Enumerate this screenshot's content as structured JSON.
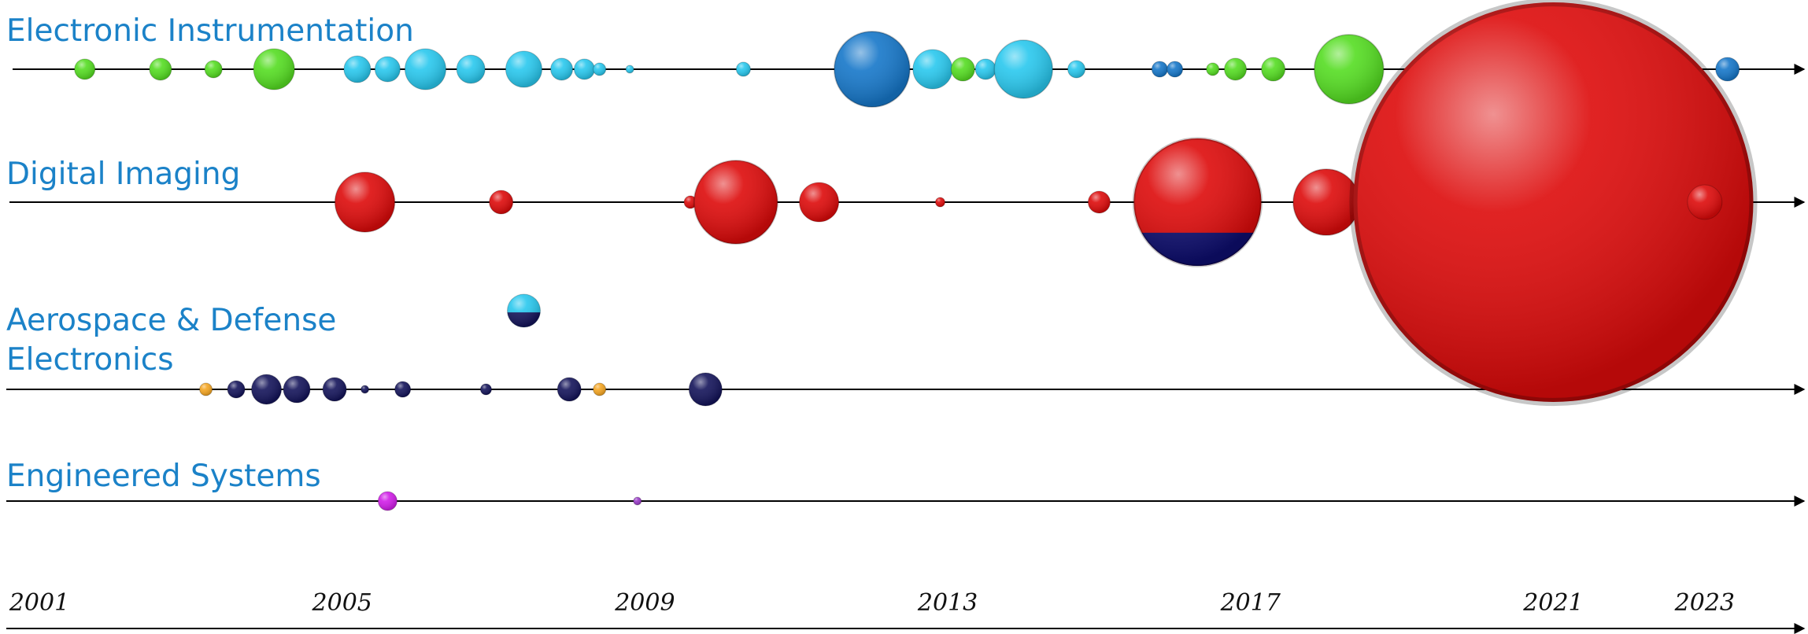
{
  "chart_data": {
    "type": "scatter",
    "x_axis": {
      "tick_labels": [
        "2001",
        "2005",
        "2009",
        "2013",
        "2017",
        "2021",
        "2023"
      ],
      "xlim": [
        2001,
        2024
      ]
    },
    "rows": [
      {
        "name": "Electronic Instrumentation",
        "bubbles": [
          {
            "x": 2001.6,
            "r": 13,
            "color": "#55dd22"
          },
          {
            "x": 2002.6,
            "r": 14,
            "color": "#55dd22"
          },
          {
            "x": 2003.3,
            "r": 11,
            "color": "#55dd22"
          },
          {
            "x": 2004.1,
            "r": 26,
            "color": "#55dd22"
          },
          {
            "x": 2005.2,
            "r": 17,
            "color": "#29c8ee"
          },
          {
            "x": 2005.6,
            "r": 16,
            "color": "#29c8ee"
          },
          {
            "x": 2006.1,
            "r": 26,
            "color": "#29c8ee"
          },
          {
            "x": 2006.7,
            "r": 18,
            "color": "#29c8ee"
          },
          {
            "x": 2007.4,
            "r": 23,
            "color": "#29c8ee"
          },
          {
            "x": 2007.9,
            "r": 14,
            "color": "#29c8ee"
          },
          {
            "x": 2008.2,
            "r": 13,
            "color": "#29c8ee"
          },
          {
            "x": 2008.4,
            "r": 8,
            "color": "#29c8ee"
          },
          {
            "x": 2008.8,
            "r": 5,
            "color": "#29c8ee"
          },
          {
            "x": 2010.3,
            "r": 9,
            "color": "#29c8ee"
          },
          {
            "x": 2012.0,
            "r": 48,
            "color": "#1677c9"
          },
          {
            "x": 2012.8,
            "r": 25,
            "color": "#29c8ee"
          },
          {
            "x": 2013.2,
            "r": 15,
            "color": "#55dd22"
          },
          {
            "x": 2013.5,
            "r": 13,
            "color": "#29c8ee"
          },
          {
            "x": 2014.0,
            "r": 37,
            "color": "#29c8ee"
          },
          {
            "x": 2014.7,
            "r": 11,
            "color": "#29c8ee"
          },
          {
            "x": 2015.8,
            "r": 10,
            "color": "#1677c9"
          },
          {
            "x": 2016.0,
            "r": 10,
            "color": "#1677c9"
          },
          {
            "x": 2016.5,
            "r": 8,
            "color": "#55dd22"
          },
          {
            "x": 2016.8,
            "r": 14,
            "color": "#55dd22"
          },
          {
            "x": 2017.3,
            "r": 15,
            "color": "#55dd22"
          },
          {
            "x": 2018.3,
            "r": 44,
            "color": "#55dd22"
          },
          {
            "x": 2019.4,
            "r": 15,
            "color": "#1677c9"
          },
          {
            "x": 2023.3,
            "r": 15,
            "color": "#1677c9"
          }
        ]
      },
      {
        "name": "Digital Imaging",
        "bubbles": [
          {
            "x": 2005.3,
            "r": 38,
            "color": "#dd0b0b"
          },
          {
            "x": 2007.1,
            "r": 15,
            "color": "#dd0b0b"
          },
          {
            "x": 2009.6,
            "r": 8,
            "color": "#dd0b0b"
          },
          {
            "x": 2010.2,
            "r": 53,
            "color": "#dd0b0b"
          },
          {
            "x": 2011.3,
            "r": 25,
            "color": "#dd0b0b"
          },
          {
            "x": 2012.9,
            "r": 6,
            "color": "#dd0b0b"
          },
          {
            "x": 2015.0,
            "r": 14,
            "color": "#dd0b0b"
          },
          {
            "x": 2016.3,
            "r": 81,
            "color": "#dd0b0b",
            "lower_color": "#0d0d6e",
            "lower_fraction": 0.26
          },
          {
            "x": 2018.0,
            "r": 42,
            "color": "#dd0b0b"
          },
          {
            "x": 2018.8,
            "r": 15,
            "color": "#dd0b0b"
          },
          {
            "x": 2021.0,
            "r": 254,
            "color": "#dd0b0b"
          },
          {
            "x": 2023.0,
            "r": 22,
            "color": "#dd0b0b"
          }
        ]
      },
      {
        "name": "Aerospace & Defense Electronics",
        "bubbles": [
          {
            "x": 2003.2,
            "r": 8,
            "color": "#f5a623"
          },
          {
            "x": 2003.6,
            "r": 11,
            "color": "#14145a"
          },
          {
            "x": 2004.0,
            "r": 19,
            "color": "#14145a"
          },
          {
            "x": 2004.4,
            "r": 17,
            "color": "#14145a"
          },
          {
            "x": 2004.9,
            "r": 15,
            "color": "#14145a"
          },
          {
            "x": 2005.3,
            "r": 5,
            "color": "#14145a"
          },
          {
            "x": 2005.8,
            "r": 10,
            "color": "#14145a"
          },
          {
            "x": 2006.9,
            "r": 7,
            "color": "#14145a"
          },
          {
            "x": 2007.4,
            "r": 21,
            "color": "#29c8ee",
            "lower_color": "#14145a",
            "lower_fraction": 0.45,
            "offset_row": true
          },
          {
            "x": 2008.0,
            "r": 15,
            "color": "#14145a"
          },
          {
            "x": 2008.4,
            "r": 8,
            "color": "#f5a623"
          },
          {
            "x": 2009.8,
            "r": 21,
            "color": "#14145a"
          }
        ]
      },
      {
        "name": "Engineered Systems",
        "bubbles": [
          {
            "x": 2005.6,
            "r": 12,
            "color": "#d11ee8"
          },
          {
            "x": 2008.9,
            "r": 5,
            "color": "#9a3cc8"
          }
        ]
      }
    ]
  }
}
